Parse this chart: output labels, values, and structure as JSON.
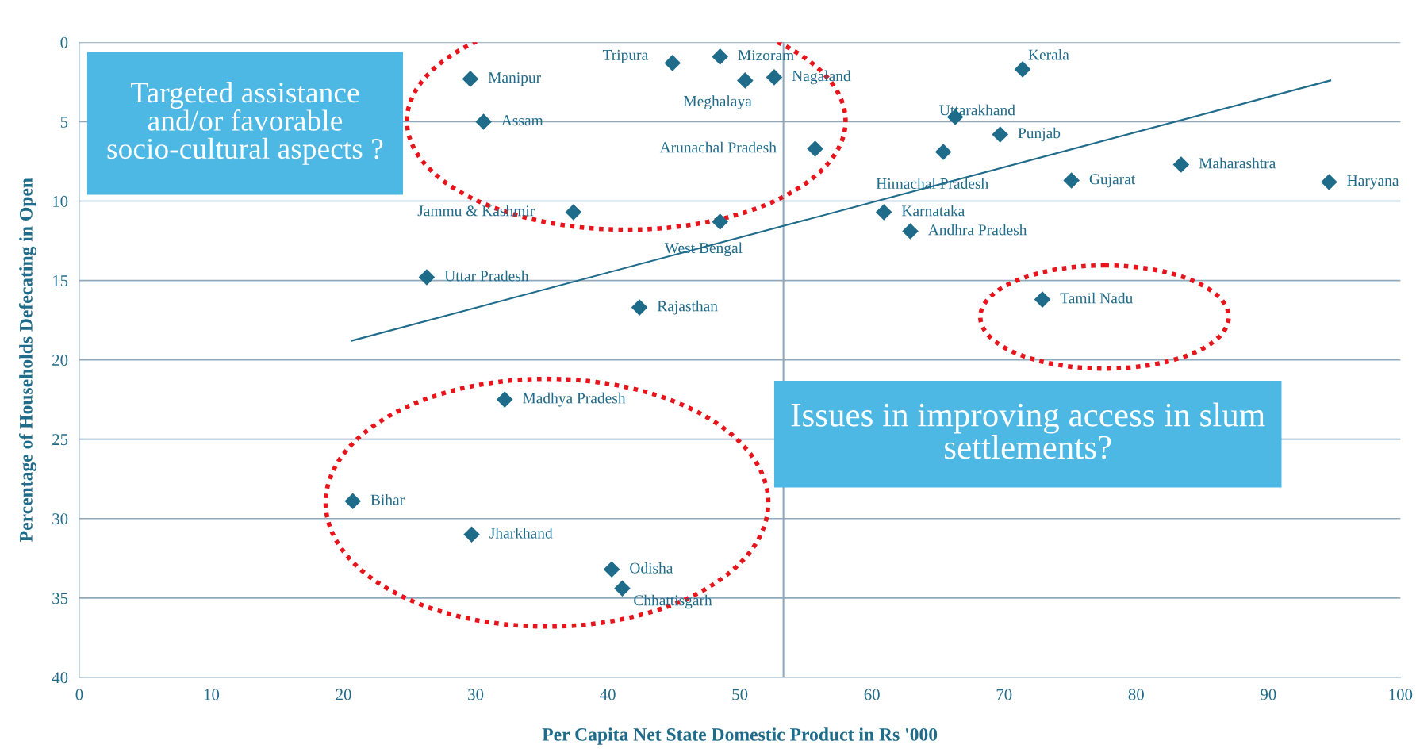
{
  "chart_data": {
    "type": "scatter",
    "xlabel": "Per Capita Net State Domestic Product in Rs '000",
    "ylabel": "Percentage of Households Defecating in Open",
    "xlim": [
      0,
      100
    ],
    "xticks": [
      0,
      10,
      20,
      30,
      40,
      50,
      60,
      70,
      80,
      90,
      100
    ],
    "ylim": [
      40,
      0
    ],
    "yticks": [
      0,
      5,
      10,
      15,
      20,
      25,
      30,
      35,
      40
    ],
    "grid": "y",
    "marker": "diamond",
    "series": [
      {
        "color": "#1f6b8a",
        "x": [
          29.6,
          30.6,
          44.9,
          48.5,
          50.4,
          52.6,
          55.7,
          71.4,
          66.3,
          69.7,
          65.4,
          83.4,
          75.1,
          94.6,
          37.4,
          48.5,
          60.9,
          62.9,
          26.3,
          42.4,
          72.9,
          32.2,
          20.7,
          29.7,
          40.3,
          41.1
        ],
        "values": [
          2.3,
          5.0,
          1.3,
          0.9,
          2.4,
          2.2,
          6.7,
          1.7,
          4.7,
          5.8,
          6.9,
          7.7,
          8.7,
          8.8,
          10.7,
          11.3,
          10.7,
          11.9,
          14.8,
          16.7,
          16.2,
          22.5,
          28.9,
          31.0,
          33.2,
          34.4
        ]
      },
      {
        "type": "line",
        "marker": "none",
        "color": "#1f6b8a",
        "x": [
          20.6,
          94.7
        ],
        "values": [
          18.8,
          2.4
        ]
      }
    ],
    "ref_lines": [
      {
        "axis": "x",
        "value": 53.3,
        "color": "#8fa9bb"
      }
    ],
    "annotations": [
      {
        "text": "Manipur",
        "x": 29.6,
        "y": 2.3
      },
      {
        "text": "Assam",
        "x": 30.6,
        "y": 5.0
      },
      {
        "text": "Tripura",
        "x": 44.9,
        "y": 1.3
      },
      {
        "text": "Mizoram",
        "x": 48.5,
        "y": 0.9
      },
      {
        "text": "Meghalaya",
        "x": 50.4,
        "y": 2.4
      },
      {
        "text": "Nagaland",
        "x": 52.6,
        "y": 2.2
      },
      {
        "text": "Arunachal Pradesh",
        "x": 55.7,
        "y": 6.7
      },
      {
        "text": "Kerala",
        "x": 71.4,
        "y": 1.7
      },
      {
        "text": "Uttarakhand",
        "x": 66.3,
        "y": 4.7
      },
      {
        "text": "Punjab",
        "x": 69.7,
        "y": 5.8
      },
      {
        "text": "Himachal Pradesh",
        "x": 65.4,
        "y": 6.9
      },
      {
        "text": "Maharashtra",
        "x": 83.4,
        "y": 7.7
      },
      {
        "text": "Gujarat",
        "x": 75.1,
        "y": 8.7
      },
      {
        "text": "Haryana",
        "x": 94.6,
        "y": 8.8
      },
      {
        "text": "Jammu & Kashmir",
        "x": 37.4,
        "y": 10.7
      },
      {
        "text": "West Bengal",
        "x": 48.5,
        "y": 11.3
      },
      {
        "text": "Karnataka",
        "x": 60.9,
        "y": 10.7
      },
      {
        "text": "Andhra Pradesh",
        "x": 62.9,
        "y": 11.9
      },
      {
        "text": "Uttar Pradesh",
        "x": 26.3,
        "y": 14.8
      },
      {
        "text": "Rajasthan",
        "x": 42.4,
        "y": 16.7
      },
      {
        "text": "Tamil Nadu",
        "x": 72.9,
        "y": 16.2
      },
      {
        "text": "Madhya Pradesh",
        "x": 32.2,
        "y": 22.5
      },
      {
        "text": "Bihar",
        "x": 20.7,
        "y": 28.9
      },
      {
        "text": "Jharkhand",
        "x": 29.7,
        "y": 31.0
      },
      {
        "text": "Odisha",
        "x": 40.3,
        "y": 33.2
      },
      {
        "text": "Chhattisgarh",
        "x": 41.1,
        "y": 34.4
      },
      "Targeted assistance and/or favorable socio-cultural aspects ?",
      "Issues in improving access in slum settlements?"
    ]
  }
}
